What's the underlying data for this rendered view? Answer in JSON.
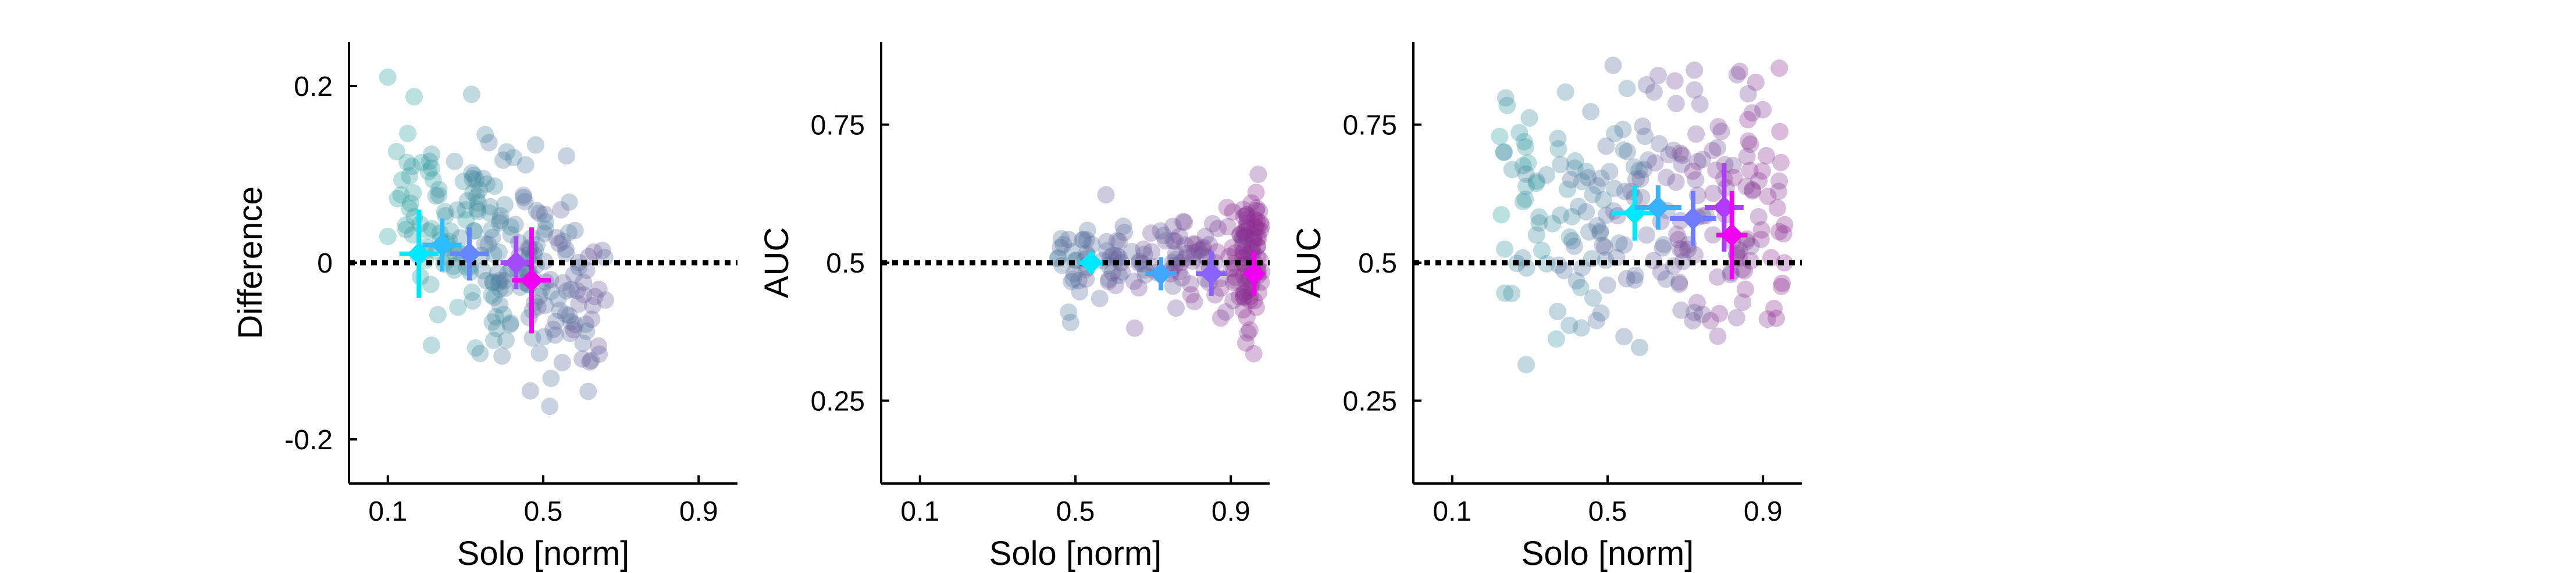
{
  "chart_data": [
    {
      "type": "scatter",
      "title": "",
      "xlabel": "Solo [norm]",
      "ylabel": "Difference",
      "xlim": [
        0.0,
        1.0
      ],
      "ylim": [
        -0.25,
        0.25
      ],
      "xticks": [
        "0.1",
        "0.5",
        "0.9"
      ],
      "xtick_values": [
        0.1,
        0.5,
        0.9
      ],
      "yticks": [
        "-0.2",
        "0",
        "0.2"
      ],
      "ytick_values": [
        -0.2,
        0.0,
        0.2
      ],
      "reference_line": {
        "y": 0,
        "style": "dotted"
      },
      "grid": false,
      "legend": "none",
      "color_scale": [
        "#2aa0a0",
        "#5a6e9e",
        "#8e2c92"
      ],
      "summary_color_scale": [
        "#00e8ff",
        "#6f7cff",
        "#f000f0"
      ],
      "points_seed": 11,
      "points": [],
      "summary": [
        {
          "x": 0.18,
          "y": 0.01,
          "xerr": 0.05,
          "yerr": 0.05,
          "t": 0.0
        },
        {
          "x": 0.24,
          "y": 0.02,
          "xerr": 0.05,
          "yerr": 0.03,
          "t": 0.2
        },
        {
          "x": 0.31,
          "y": 0.01,
          "xerr": 0.05,
          "yerr": 0.03,
          "t": 0.45
        },
        {
          "x": 0.43,
          "y": 0.0,
          "xerr": 0.04,
          "yerr": 0.03,
          "t": 0.7
        },
        {
          "x": 0.47,
          "y": -0.02,
          "xerr": 0.05,
          "yerr": 0.06,
          "t": 1.0
        }
      ]
    },
    {
      "type": "scatter",
      "title": "",
      "xlabel": "Solo [norm]",
      "ylabel": "AUC",
      "xlim": [
        0.0,
        1.0
      ],
      "ylim": [
        0.1,
        0.9
      ],
      "xticks": [
        "0.1",
        "0.5",
        "0.9"
      ],
      "xtick_values": [
        0.1,
        0.5,
        0.9
      ],
      "yticks": [
        "0.25",
        "0.5",
        "0.75"
      ],
      "ytick_values": [
        0.25,
        0.5,
        0.75
      ],
      "reference_line": {
        "y": 0.5,
        "style": "dotted"
      },
      "grid": false,
      "legend": "none",
      "color_scale": [
        "#2aa0a0",
        "#5a6e9e",
        "#8e2c92"
      ],
      "summary_color_scale": [
        "#00e8ff",
        "#6f7cff",
        "#f000f0"
      ],
      "points_seed": 23,
      "points": [],
      "summary": [
        {
          "x": 0.54,
          "y": 0.5,
          "xerr": 0.03,
          "yerr": 0.02,
          "t": 0.0
        },
        {
          "x": 0.72,
          "y": 0.48,
          "xerr": 0.04,
          "yerr": 0.03,
          "t": 0.3
        },
        {
          "x": 0.85,
          "y": 0.48,
          "xerr": 0.04,
          "yerr": 0.04,
          "t": 0.6
        },
        {
          "x": 0.96,
          "y": 0.48,
          "xerr": 0.02,
          "yerr": 0.04,
          "t": 1.0
        }
      ]
    },
    {
      "type": "scatter",
      "title": "",
      "xlabel": "Solo [norm]",
      "ylabel": "AUC",
      "xlim": [
        0.0,
        1.0
      ],
      "ylim": [
        0.1,
        0.9
      ],
      "xticks": [
        "0.1",
        "0.5",
        "0.9"
      ],
      "xtick_values": [
        0.1,
        0.5,
        0.9
      ],
      "yticks": [
        "0.25",
        "0.5",
        "0.75"
      ],
      "ytick_values": [
        0.25,
        0.5,
        0.75
      ],
      "reference_line": {
        "y": 0.5,
        "style": "dotted"
      },
      "grid": false,
      "legend": "none",
      "color_scale": [
        "#2aa0a0",
        "#5a6e9e",
        "#8e2c92"
      ],
      "summary_color_scale": [
        "#00e8ff",
        "#6f7cff",
        "#f000f0"
      ],
      "points_seed": 37,
      "points": [],
      "summary": [
        {
          "x": 0.57,
          "y": 0.59,
          "xerr": 0.06,
          "yerr": 0.05,
          "t": 0.0
        },
        {
          "x": 0.63,
          "y": 0.6,
          "xerr": 0.06,
          "yerr": 0.04,
          "t": 0.25
        },
        {
          "x": 0.72,
          "y": 0.58,
          "xerr": 0.06,
          "yerr": 0.05,
          "t": 0.5
        },
        {
          "x": 0.8,
          "y": 0.6,
          "xerr": 0.05,
          "yerr": 0.08,
          "t": 0.75
        },
        {
          "x": 0.82,
          "y": 0.55,
          "xerr": 0.04,
          "yerr": 0.08,
          "t": 1.0
        }
      ]
    }
  ]
}
